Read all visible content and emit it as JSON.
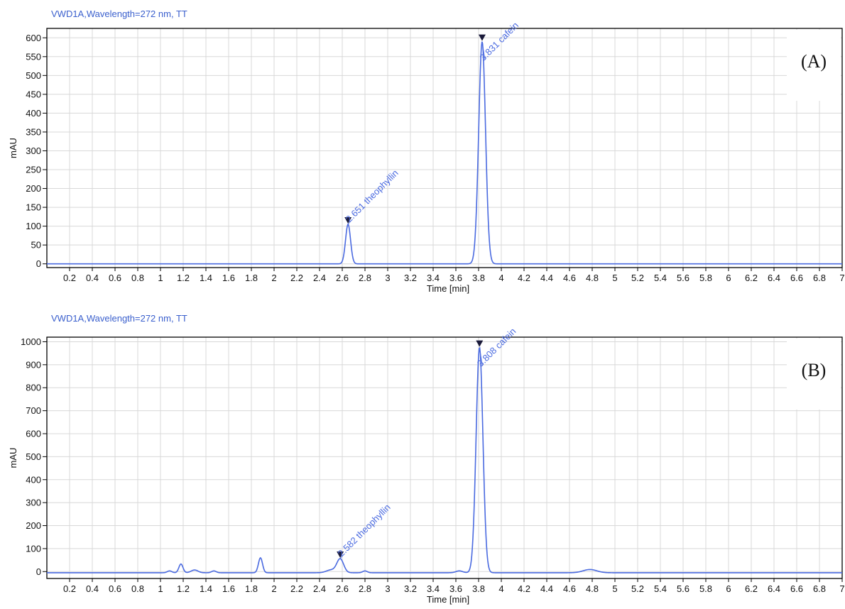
{
  "colors": {
    "trace": "#4a6ae0",
    "grid": "#d8d8d8",
    "axis": "#000000",
    "title": "#3a5fcd",
    "marker": "#1a1a3a"
  },
  "chart_data": [
    {
      "type": "line",
      "title": "VWD1A,Wavelength=272 nm, TT",
      "panel_label": "(A)",
      "xlabel": "Time [min]",
      "ylabel": "mAU",
      "xlim": [
        0,
        7
      ],
      "ylim": [
        -10,
        625
      ],
      "xticks": [
        0.2,
        0.4,
        0.6,
        0.8,
        1,
        1.2,
        1.4,
        1.6,
        1.8,
        2,
        2.2,
        2.4,
        2.6,
        2.8,
        3,
        3.2,
        3.4,
        3.6,
        3.8,
        4,
        4.2,
        4.4,
        4.6,
        4.8,
        5,
        5.2,
        5.4,
        5.6,
        5.8,
        6,
        6.2,
        6.4,
        6.6,
        6.8,
        7
      ],
      "yticks": [
        0,
        50,
        100,
        150,
        200,
        250,
        300,
        350,
        400,
        450,
        500,
        550,
        600
      ],
      "grid": true,
      "baseline": 0,
      "peaks": [
        {
          "name": "theophyllin",
          "rt": 2.651,
          "height": 105,
          "width": 0.022,
          "label": "2.651 theophyllin"
        },
        {
          "name": "cafein",
          "rt": 3.831,
          "height": 590,
          "width": 0.03,
          "label": "3.831 cafein"
        }
      ]
    },
    {
      "type": "line",
      "title": "VWD1A,Wavelength=272 nm, TT",
      "panel_label": "(B)",
      "xlabel": "Time [min]",
      "ylabel": "mAU",
      "xlim": [
        0,
        7
      ],
      "ylim": [
        -30,
        1020
      ],
      "xticks": [
        0.2,
        0.4,
        0.6,
        0.8,
        1,
        1.2,
        1.4,
        1.6,
        1.8,
        2,
        2.2,
        2.4,
        2.6,
        2.8,
        3,
        3.2,
        3.4,
        3.6,
        3.8,
        4,
        4.2,
        4.4,
        4.6,
        4.8,
        5,
        5.2,
        5.4,
        5.6,
        5.8,
        6,
        6.2,
        6.4,
        6.6,
        6.8,
        7
      ],
      "yticks": [
        0,
        100,
        200,
        300,
        400,
        500,
        600,
        700,
        800,
        900,
        1000
      ],
      "grid": true,
      "baseline": -5,
      "peaks": [
        {
          "name": "minor",
          "rt": 1.08,
          "height": 8,
          "width": 0.02,
          "label": ""
        },
        {
          "name": "minor",
          "rt": 1.18,
          "height": 38,
          "width": 0.018,
          "label": ""
        },
        {
          "name": "minor",
          "rt": 1.3,
          "height": 12,
          "width": 0.03,
          "label": ""
        },
        {
          "name": "minor",
          "rt": 1.47,
          "height": 8,
          "width": 0.02,
          "label": ""
        },
        {
          "name": "minor",
          "rt": 1.88,
          "height": 65,
          "width": 0.018,
          "label": ""
        },
        {
          "name": "minor",
          "rt": 2.5,
          "height": 12,
          "width": 0.04,
          "label": ""
        },
        {
          "name": "theophyllin",
          "rt": 2.582,
          "height": 60,
          "width": 0.03,
          "label": "2.582 theophyllin"
        },
        {
          "name": "minor",
          "rt": 2.8,
          "height": 8,
          "width": 0.02,
          "label": ""
        },
        {
          "name": "minor",
          "rt": 3.63,
          "height": 8,
          "width": 0.03,
          "label": ""
        },
        {
          "name": "cafein",
          "rt": 3.808,
          "height": 980,
          "width": 0.03,
          "label": "3.808 cafein"
        },
        {
          "name": "minor",
          "rt": 4.78,
          "height": 14,
          "width": 0.06,
          "label": ""
        }
      ]
    }
  ]
}
